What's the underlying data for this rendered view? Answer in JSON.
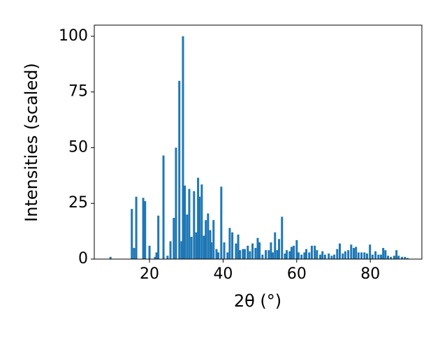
{
  "chart_data": {
    "type": "bar",
    "x_label": "2θ (°)",
    "y_label": "Intensities (scaled)",
    "color": "#1f77b4",
    "x": [
      9.4,
      15.2,
      15.8,
      16.4,
      18.3,
      18.8,
      20.0,
      21.5,
      21.9,
      22.4,
      23.8,
      24.9,
      25.7,
      26.6,
      27.2,
      28.1,
      28.7,
      29.1,
      29.6,
      30.2,
      30.8,
      31.4,
      32.1,
      32.7,
      33.2,
      33.6,
      34.2,
      34.8,
      35.3,
      35.9,
      36.5,
      36.8,
      37.4,
      38.2,
      38.7,
      39.5,
      40.3,
      41.2,
      41.8,
      42.5,
      43.5,
      44.1,
      44.6,
      45.4,
      45.9,
      46.7,
      47.3,
      48.0,
      48.8,
      49.4,
      49.9,
      50.7,
      51.6,
      52.4,
      53.0,
      53.5,
      54.1,
      54.7,
      55.2,
      56.0,
      56.8,
      57.3,
      58.1,
      58.6,
      59.2,
      60.0,
      60.5,
      61.3,
      62.1,
      62.6,
      63.4,
      64.1,
      64.9,
      65.5,
      66.4,
      67.0,
      67.7,
      68.7,
      69.5,
      70.2,
      71.0,
      71.7,
      72.5,
      73.2,
      74.0,
      74.8,
      75.5,
      76.1,
      76.8,
      77.6,
      78.4,
      79.1,
      79.9,
      80.6,
      81.4,
      82.2,
      82.9,
      83.5,
      84.1,
      84.8,
      85.6,
      86.5,
      87.1,
      87.7,
      88.6,
      89.4,
      90.1
    ],
    "values": [
      1,
      22.5,
      5,
      28,
      27.5,
      26,
      6,
      1,
      3,
      19.5,
      46.5,
      1.5,
      8,
      18.5,
      50,
      80,
      8,
      100,
      33,
      20,
      31.5,
      10,
      30.5,
      12,
      36.5,
      28,
      33.5,
      10.5,
      17.5,
      20.5,
      13,
      7.5,
      17.5,
      4.5,
      3,
      32.5,
      7.5,
      3,
      14,
      12,
      7,
      11,
      4,
      4.5,
      4.5,
      6,
      3.5,
      7,
      5,
      9.5,
      7.5,
      2,
      4,
      4,
      7.5,
      3,
      12,
      4,
      9,
      19,
      2.5,
      4,
      3.5,
      5.5,
      6,
      8.5,
      3,
      2,
      3,
      4.5,
      3,
      6,
      6,
      4,
      2,
      3.5,
      2,
      2.5,
      1.5,
      2,
      4.5,
      7,
      2.5,
      3.5,
      4,
      6.5,
      5,
      5.5,
      3,
      3,
      3,
      2.5,
      6.5,
      2,
      3.5,
      2,
      2,
      5,
      4,
      1.5,
      1,
      1.5,
      4,
      1.5,
      1,
      1,
      0.5
    ],
    "xlim": [
      5,
      94
    ],
    "xticks": [
      20,
      40,
      60,
      80
    ],
    "ylim": [
      0,
      105
    ],
    "yticks": [
      0,
      25,
      50,
      75,
      100
    ]
  }
}
